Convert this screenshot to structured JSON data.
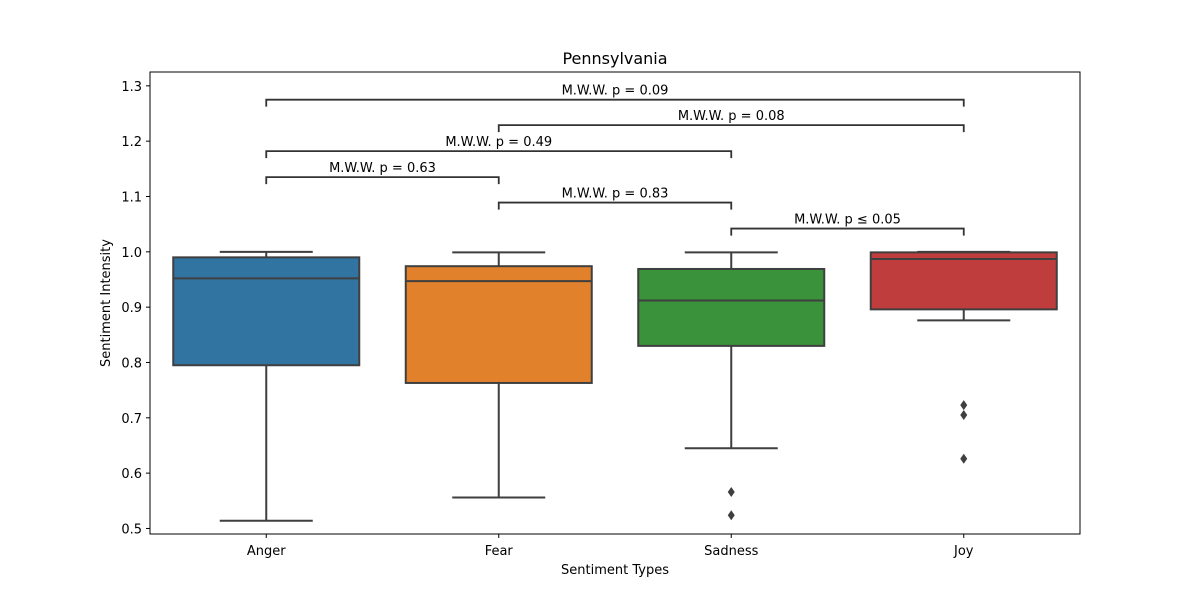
{
  "chart_data": {
    "type": "box",
    "title": "Pennsylvania",
    "xlabel": "Sentiment Types",
    "ylabel": "Sentiment Intensity",
    "ylim": [
      0.49,
      1.325
    ],
    "yticks": [
      "0.5",
      "0.6",
      "0.7",
      "0.8",
      "0.9",
      "1.0",
      "1.1",
      "1.2",
      "1.3"
    ],
    "categories": [
      "Anger",
      "Fear",
      "Sadness",
      "Joy"
    ],
    "colors": [
      "#3274a1",
      "#e1812c",
      "#3a923a",
      "#c03d3e"
    ],
    "boxes": [
      {
        "category": "Anger",
        "whisker_low": 0.514,
        "q1": 0.795,
        "median": 0.952,
        "q3": 0.99,
        "whisker_high": 1.0,
        "outliers": []
      },
      {
        "category": "Fear",
        "whisker_low": 0.556,
        "q1": 0.763,
        "median": 0.947,
        "q3": 0.974,
        "whisker_high": 0.999,
        "outliers": []
      },
      {
        "category": "Sadness",
        "whisker_low": 0.645,
        "q1": 0.83,
        "median": 0.912,
        "q3": 0.969,
        "whisker_high": 0.999,
        "outliers": [
          0.566,
          0.524
        ]
      },
      {
        "category": "Joy",
        "whisker_low": 0.876,
        "q1": 0.896,
        "median": 0.987,
        "q3": 0.999,
        "whisker_high": 1.0,
        "outliers": [
          0.723,
          0.705,
          0.626
        ]
      }
    ],
    "annotations": [
      {
        "from": "Sadness",
        "to": "Joy",
        "y": 1.042,
        "text": "M.W.W. p ≤ 0.05"
      },
      {
        "from": "Fear",
        "to": "Sadness",
        "y": 1.089,
        "text": "M.W.W. p = 0.83"
      },
      {
        "from": "Anger",
        "to": "Fear",
        "y": 1.135,
        "text": "M.W.W. p = 0.63"
      },
      {
        "from": "Anger",
        "to": "Sadness",
        "y": 1.182,
        "text": "M.W.W. p = 0.49"
      },
      {
        "from": "Fear",
        "to": "Joy",
        "y": 1.229,
        "text": "M.W.W. p = 0.08"
      },
      {
        "from": "Anger",
        "to": "Joy",
        "y": 1.275,
        "text": "M.W.W. p = 0.09"
      }
    ]
  }
}
